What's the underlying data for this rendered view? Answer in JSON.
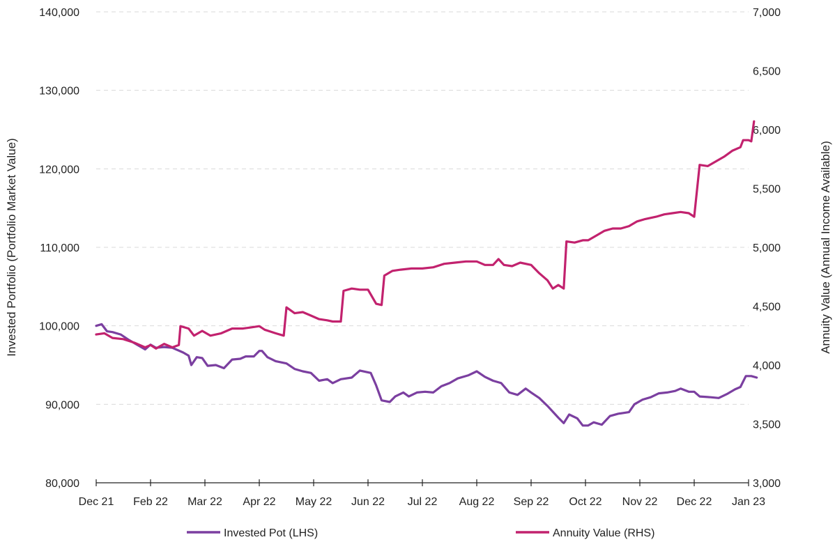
{
  "chart_data": {
    "type": "line",
    "title": "",
    "ylabel_left": "Invested Portfolio (Portfolio Market Value)",
    "ylabel_right": "Annuity Value (Annual Income Available)",
    "ylim_left": [
      80000,
      140000
    ],
    "ylim_right": [
      3000,
      7000
    ],
    "yticks_left": [
      "80,000",
      "90,000",
      "100,000",
      "110,000",
      "120,000",
      "130,000",
      "140,000"
    ],
    "yticks_right": [
      "3,000",
      "3,500",
      "4,000",
      "4,500",
      "5,000",
      "5,500",
      "6,000",
      "6,500",
      "7,000"
    ],
    "xticks": [
      "Dec 21",
      "Feb 22",
      "Mar 22",
      "Apr 22",
      "May 22",
      "Jun 22",
      "Jul 22",
      "Aug 22",
      "Sep 22",
      "Oct 22",
      "Nov 22",
      "Dec 22",
      "Jan 23"
    ],
    "grid": "horizontal dashed",
    "legend_position": "bottom",
    "series": [
      {
        "name": "Invested Pot (LHS)",
        "axis": "left",
        "color": "#7B3FA0",
        "points": [
          [
            0,
            100000
          ],
          [
            0.1,
            100200
          ],
          [
            0.2,
            99300
          ],
          [
            0.3,
            99200
          ],
          [
            0.45,
            98900
          ],
          [
            0.6,
            98200
          ],
          [
            0.75,
            97600
          ],
          [
            0.9,
            97000
          ],
          [
            1.0,
            97600
          ],
          [
            1.1,
            97200
          ],
          [
            1.25,
            97300
          ],
          [
            1.4,
            97200
          ],
          [
            1.6,
            96600
          ],
          [
            1.7,
            96200
          ],
          [
            1.75,
            95000
          ],
          [
            1.85,
            96000
          ],
          [
            1.95,
            95900
          ],
          [
            2.05,
            94900
          ],
          [
            2.2,
            95000
          ],
          [
            2.35,
            94600
          ],
          [
            2.5,
            95700
          ],
          [
            2.65,
            95800
          ],
          [
            2.75,
            96100
          ],
          [
            2.9,
            96100
          ],
          [
            3.0,
            96800
          ],
          [
            3.05,
            96800
          ],
          [
            3.15,
            96000
          ],
          [
            3.3,
            95500
          ],
          [
            3.5,
            95200
          ],
          [
            3.65,
            94500
          ],
          [
            3.8,
            94200
          ],
          [
            3.95,
            94000
          ],
          [
            4.1,
            93000
          ],
          [
            4.25,
            93200
          ],
          [
            4.35,
            92700
          ],
          [
            4.5,
            93200
          ],
          [
            4.7,
            93400
          ],
          [
            4.85,
            94300
          ],
          [
            5.05,
            94000
          ],
          [
            5.15,
            92400
          ],
          [
            5.25,
            90500
          ],
          [
            5.4,
            90300
          ],
          [
            5.5,
            91000
          ],
          [
            5.65,
            91500
          ],
          [
            5.75,
            91000
          ],
          [
            5.9,
            91500
          ],
          [
            6.05,
            91600
          ],
          [
            6.2,
            91500
          ],
          [
            6.35,
            92300
          ],
          [
            6.5,
            92700
          ],
          [
            6.65,
            93300
          ],
          [
            6.85,
            93700
          ],
          [
            7.0,
            94200
          ],
          [
            7.15,
            93500
          ],
          [
            7.3,
            93000
          ],
          [
            7.45,
            92700
          ],
          [
            7.6,
            91500
          ],
          [
            7.75,
            91200
          ],
          [
            7.9,
            92000
          ],
          [
            8.0,
            91500
          ],
          [
            8.15,
            90800
          ],
          [
            8.3,
            89800
          ],
          [
            8.5,
            88300
          ],
          [
            8.6,
            87600
          ],
          [
            8.7,
            88700
          ],
          [
            8.85,
            88200
          ],
          [
            8.95,
            87300
          ],
          [
            9.05,
            87300
          ],
          [
            9.15,
            87700
          ],
          [
            9.3,
            87400
          ],
          [
            9.45,
            88500
          ],
          [
            9.6,
            88800
          ],
          [
            9.8,
            89000
          ],
          [
            9.9,
            90000
          ],
          [
            10.05,
            90600
          ],
          [
            10.2,
            90900
          ],
          [
            10.35,
            91400
          ],
          [
            10.5,
            91500
          ],
          [
            10.65,
            91700
          ],
          [
            10.75,
            92000
          ],
          [
            10.9,
            91600
          ],
          [
            11.0,
            91600
          ],
          [
            11.1,
            91000
          ],
          [
            11.3,
            90900
          ],
          [
            11.45,
            90800
          ],
          [
            11.6,
            91300
          ],
          [
            11.75,
            91900
          ],
          [
            11.85,
            92200
          ],
          [
            11.95,
            93600
          ],
          [
            12.05,
            93600
          ],
          [
            12.15,
            93400
          ]
        ]
      },
      {
        "name": "Annuity Value (RHS)",
        "axis": "right",
        "color": "#C2226E",
        "points": [
          [
            0,
            4260
          ],
          [
            0.15,
            4270
          ],
          [
            0.3,
            4230
          ],
          [
            0.5,
            4220
          ],
          [
            0.7,
            4190
          ],
          [
            0.9,
            4150
          ],
          [
            1.0,
            4170
          ],
          [
            1.1,
            4140
          ],
          [
            1.25,
            4180
          ],
          [
            1.4,
            4150
          ],
          [
            1.52,
            4170
          ],
          [
            1.55,
            4330
          ],
          [
            1.7,
            4310
          ],
          [
            1.8,
            4250
          ],
          [
            1.95,
            4290
          ],
          [
            2.1,
            4250
          ],
          [
            2.3,
            4270
          ],
          [
            2.5,
            4310
          ],
          [
            2.7,
            4310
          ],
          [
            2.85,
            4320
          ],
          [
            3.0,
            4330
          ],
          [
            3.1,
            4300
          ],
          [
            3.3,
            4270
          ],
          [
            3.45,
            4250
          ],
          [
            3.5,
            4490
          ],
          [
            3.65,
            4440
          ],
          [
            3.8,
            4450
          ],
          [
            3.95,
            4420
          ],
          [
            4.1,
            4390
          ],
          [
            4.25,
            4380
          ],
          [
            4.35,
            4370
          ],
          [
            4.5,
            4370
          ],
          [
            4.55,
            4630
          ],
          [
            4.7,
            4650
          ],
          [
            4.85,
            4640
          ],
          [
            5.0,
            4640
          ],
          [
            5.05,
            4600
          ],
          [
            5.15,
            4520
          ],
          [
            5.25,
            4510
          ],
          [
            5.3,
            4760
          ],
          [
            5.45,
            4800
          ],
          [
            5.6,
            4810
          ],
          [
            5.8,
            4820
          ],
          [
            6.0,
            4820
          ],
          [
            6.2,
            4830
          ],
          [
            6.4,
            4860
          ],
          [
            6.6,
            4870
          ],
          [
            6.8,
            4880
          ],
          [
            7.0,
            4880
          ],
          [
            7.15,
            4850
          ],
          [
            7.3,
            4850
          ],
          [
            7.4,
            4900
          ],
          [
            7.5,
            4850
          ],
          [
            7.65,
            4840
          ],
          [
            7.8,
            4870
          ],
          [
            8.0,
            4850
          ],
          [
            8.15,
            4780
          ],
          [
            8.3,
            4720
          ],
          [
            8.4,
            4650
          ],
          [
            8.5,
            4680
          ],
          [
            8.6,
            4650
          ],
          [
            8.65,
            5050
          ],
          [
            8.8,
            5040
          ],
          [
            8.95,
            5060
          ],
          [
            9.05,
            5060
          ],
          [
            9.2,
            5100
          ],
          [
            9.35,
            5140
          ],
          [
            9.5,
            5160
          ],
          [
            9.65,
            5160
          ],
          [
            9.8,
            5180
          ],
          [
            9.95,
            5220
          ],
          [
            10.1,
            5240
          ],
          [
            10.3,
            5260
          ],
          [
            10.45,
            5280
          ],
          [
            10.6,
            5290
          ],
          [
            10.75,
            5300
          ],
          [
            10.9,
            5290
          ],
          [
            11.0,
            5260
          ],
          [
            11.1,
            5700
          ],
          [
            11.25,
            5690
          ],
          [
            11.4,
            5730
          ],
          [
            11.55,
            5770
          ],
          [
            11.7,
            5820
          ],
          [
            11.85,
            5850
          ],
          [
            11.9,
            5910
          ],
          [
            12.0,
            5910
          ],
          [
            12.05,
            5900
          ],
          [
            12.1,
            6070
          ]
        ]
      }
    ]
  }
}
